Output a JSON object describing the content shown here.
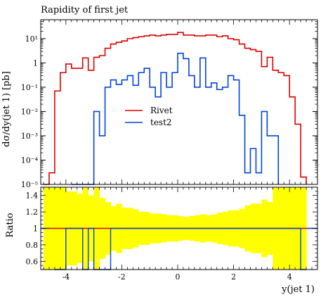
{
  "chart_data": {
    "type": "line",
    "title": "Rapidity of first jet",
    "ylabel": "dσ/dy(jet 1) [pb]",
    "ratio_ylabel": "Ratio",
    "xlabel": "y(jet 1)",
    "xlim": [
      -4.9,
      5.0
    ],
    "ylim": [
      1e-05,
      60
    ],
    "ratio_ylim": [
      0.5,
      1.5
    ],
    "yscale": "log",
    "xtick_labels": [
      "-4",
      "-2",
      "0",
      "2",
      "4"
    ],
    "xticks": [
      -4,
      -2,
      0,
      2,
      4
    ],
    "ytick_labels": [
      "10¹",
      "1",
      "10⁻¹",
      "10⁻²",
      "10⁻³",
      "10⁻⁴",
      "10⁻⁵"
    ],
    "ytick_values": [
      10,
      1,
      0.1,
      0.01,
      0.001,
      0.0001,
      1e-05
    ],
    "ratio_ytick_labels": [
      "0.6",
      "0.8",
      "1",
      "1.2",
      "1.4"
    ],
    "ratio_ytick_values": [
      0.6,
      0.8,
      1.0,
      1.2,
      1.4
    ],
    "legend": {
      "placement": "center-left"
    },
    "bin_edges": [
      -4.8,
      -4.6,
      -4.4,
      -4.2,
      -4.0,
      -3.8,
      -3.6,
      -3.4,
      -3.2,
      -3.0,
      -2.8,
      -2.6,
      -2.4,
      -2.2,
      -2.0,
      -1.8,
      -1.6,
      -1.4,
      -1.2,
      -1.0,
      -0.8,
      -0.6,
      -0.4,
      -0.2,
      0.0,
      0.2,
      0.4,
      0.6,
      0.8,
      1.0,
      1.2,
      1.4,
      1.6,
      1.8,
      2.0,
      2.2,
      2.4,
      2.6,
      2.8,
      3.0,
      3.2,
      3.4,
      3.6,
      3.8,
      4.0,
      4.2,
      4.4,
      4.6
    ],
    "series": [
      {
        "name": "Rivet",
        "color": "#dd0000",
        "values": [
          1e-05,
          3e-05,
          0.07,
          0.4,
          0.9,
          0.6,
          0.6,
          1.6,
          0.5,
          1.7,
          2.0,
          4,
          6,
          7,
          8,
          10,
          11,
          12,
          13,
          14,
          13,
          14,
          15,
          15,
          18,
          14,
          14,
          13,
          13,
          14,
          14,
          12,
          13,
          10,
          9,
          6,
          4,
          3.5,
          3,
          0.7,
          1.7,
          0.5,
          0.4,
          0.3,
          0.04,
          0.003,
          2e-05
        ]
      },
      {
        "name": "test2",
        "color": "#0044dd",
        "values": [
          null,
          null,
          null,
          null,
          null,
          1e-05,
          1e-05,
          1e-05,
          1e-05,
          0.01,
          0.001,
          0.1,
          0.2,
          0.13,
          0.2,
          0.3,
          0.12,
          0.4,
          0.6,
          0.1,
          0.04,
          0.4,
          0.1,
          0.4,
          2.5,
          1.5,
          0.3,
          0.1,
          1.6,
          0.1,
          0.15,
          0.08,
          0.1,
          0.3,
          0.2,
          0.007,
          3e-05,
          0.0003,
          3e-05,
          0.01,
          0.001,
          0.001,
          null,
          null,
          null,
          null,
          null
        ]
      }
    ],
    "ratio": {
      "band_color": "#ffff00",
      "band_halfwidth": [
        0.5,
        0.5,
        0.5,
        0.5,
        0.45,
        0.45,
        0.42,
        0.5,
        0.4,
        0.5,
        0.37,
        0.32,
        0.27,
        0.3,
        0.25,
        0.25,
        0.23,
        0.2,
        0.2,
        0.18,
        0.18,
        0.17,
        0.16,
        0.16,
        0.15,
        0.14,
        0.15,
        0.16,
        0.17,
        0.16,
        0.17,
        0.19,
        0.2,
        0.22,
        0.22,
        0.24,
        0.28,
        0.3,
        0.3,
        0.35,
        0.32,
        0.5,
        0.5,
        0.5,
        0.5,
        0.5,
        0.5
      ],
      "rivet_ratio": 1.0,
      "test2_ratio": [
        null,
        null,
        0.5,
        0.5,
        1.0,
        1.0,
        1.0,
        0.5,
        1.0,
        0.5,
        0.5,
        0.5,
        1.0,
        1.0,
        1.0,
        1.0,
        1.0,
        1.0,
        1.0,
        1.0,
        1.0,
        1.0,
        1.0,
        1.0,
        1.0,
        1.0,
        1.0,
        1.0,
        1.0,
        1.0,
        1.0,
        1.0,
        1.0,
        1.0,
        1.0,
        1.0,
        1.0,
        1.0,
        1.0,
        1.0,
        1.0,
        1.0,
        1.0,
        1.0,
        1.0,
        1.0,
        0.5
      ]
    }
  }
}
